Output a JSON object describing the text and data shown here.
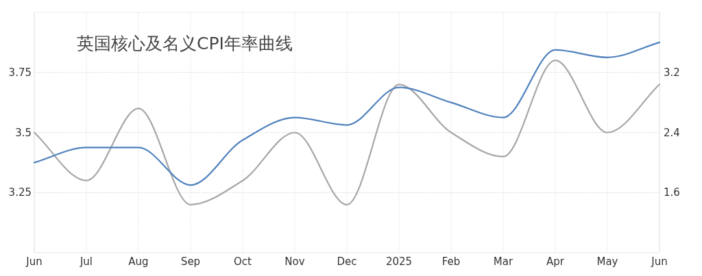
{
  "chart_data": {
    "type": "line",
    "title": "英国核心及名义CPI年率曲线",
    "categories": [
      "Jun",
      "Jul",
      "Aug",
      "Sep",
      "Oct",
      "Nov",
      "Dec",
      "2025",
      "Feb",
      "Mar",
      "Apr",
      "May",
      "Jun"
    ],
    "series": [
      {
        "color": "#a6a6a6",
        "axis": "y",
        "values": [
          3.5,
          3.3,
          3.6,
          3.2,
          3.3,
          3.5,
          3.2,
          3.7,
          3.5,
          3.4,
          3.8,
          3.5,
          3.7
        ]
      },
      {
        "color": "#4f81bd",
        "axis": "y2",
        "values": [
          2.0,
          2.2,
          2.2,
          1.7,
          2.3,
          2.6,
          2.5,
          3.0,
          2.8,
          2.6,
          3.5,
          3.4,
          3.6
        ]
      }
    ],
    "ylim": [
      3.0,
      4.0
    ],
    "yticks": [
      3.25,
      3.5,
      3.75
    ],
    "y2lim": [
      0.8,
      4.0
    ],
    "y2ticks": [
      1.6,
      2.4,
      3.2
    ],
    "grid": true,
    "marker": "none",
    "line_style": "solid"
  }
}
